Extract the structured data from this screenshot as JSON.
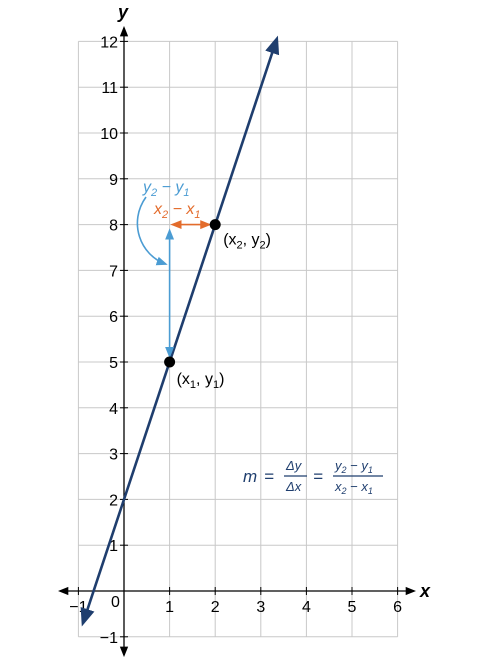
{
  "chart_data": {
    "type": "line",
    "xlabel": "y",
    "ylabel": "x",
    "xlim": [
      -1,
      6
    ],
    "ylim": [
      -1,
      12
    ],
    "grid": true,
    "x_ticks": [
      "−1",
      "1",
      "2",
      "3",
      "4",
      "5",
      "6"
    ],
    "y_ticks": [
      "−1",
      "1",
      "2",
      "3",
      "4",
      "5",
      "6",
      "7",
      "8",
      "9",
      "10",
      "11",
      "12"
    ],
    "origin_label": "0",
    "line": {
      "slope": 3,
      "intercept": 2,
      "x_range": [
        -0.9,
        3.35
      ],
      "color": "#1f3e6e"
    },
    "points": [
      {
        "x": 1,
        "y": 5,
        "label_main": "(x",
        "sub1": "1",
        "mid": ", y",
        "sub2": "1",
        "close": ")"
      },
      {
        "x": 2,
        "y": 8,
        "label_main": "(x",
        "sub1": "2",
        "mid": ", y",
        "sub2": "2",
        "close": ")"
      }
    ],
    "annotations": {
      "rise": {
        "y2": "y",
        "sub2": "2",
        "minus": " − y",
        "sub1": "1",
        "color": "#4b9cd3"
      },
      "run": {
        "x2": "x",
        "sub2": "2",
        "minus": " − x",
        "sub1": "1",
        "color": "#e36c2c"
      },
      "formula": {
        "m": "m",
        "eq": "=",
        "num1": "Δy",
        "den1": "Δx",
        "eq2": "=",
        "num2": "y",
        "num2_sub2": "2",
        "num2_minus": " − y",
        "num2_sub1": "1",
        "den2": "x",
        "den2_sub2": "2",
        "den2_minus": " − x",
        "den2_sub1": "1",
        "color": "#1f3e6e"
      }
    }
  }
}
